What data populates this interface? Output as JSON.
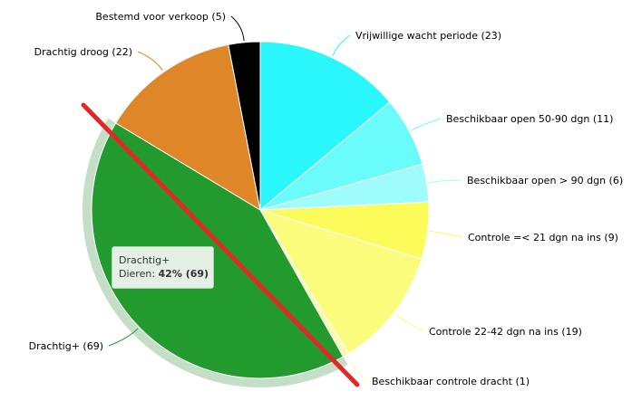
{
  "chart_data": {
    "type": "pie",
    "slices": [
      {
        "label": "Vrijwillige wacht periode (23)",
        "value": 23,
        "color": "#2af7fb"
      },
      {
        "label": "Beschikbaar open 50-90 dgn (11)",
        "value": 11,
        "color": "#6afbfb"
      },
      {
        "label": "Beschikbaar open > 90 dgn (6)",
        "value": 6,
        "color": "#9ffcfc"
      },
      {
        "label": "Controle =< 21 dgn na ins (9)",
        "value": 9,
        "color": "#fbfb5a"
      },
      {
        "label": "Controle 22-42 dgn na ins (19)",
        "value": 19,
        "color": "#fbfb7c"
      },
      {
        "label": "Beschikbaar controle dracht (1)",
        "value": 1,
        "color": "#fbfbb0"
      },
      {
        "label": "Drachtig+ (69)",
        "value": 69,
        "color": "#229a2d"
      },
      {
        "label": "Drachtig droog (22)",
        "value": 22,
        "color": "#de8628"
      },
      {
        "label": "Bestemd voor verkoop (5)",
        "value": 5,
        "color": "#000000"
      }
    ],
    "tooltip": {
      "title": "Drachtig+",
      "prefix": "Dieren: ",
      "value": "42% (69)"
    },
    "highlight_color": "#c5dec7",
    "marker_color": "#e02828"
  }
}
